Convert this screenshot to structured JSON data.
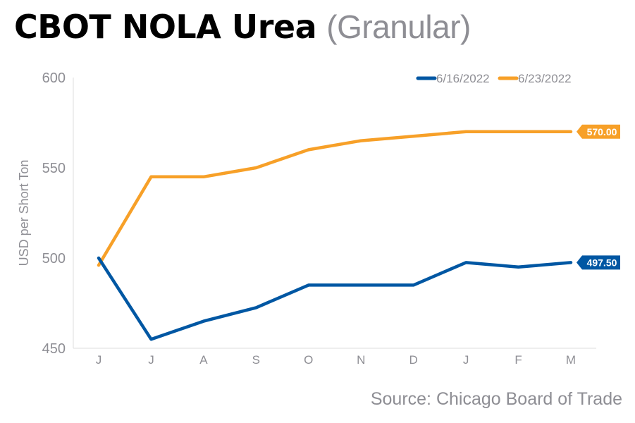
{
  "title": {
    "main": "CBOT NOLA Urea",
    "sub": "(Granular)"
  },
  "source": "Source: Chicago Board of Trade",
  "colors": {
    "series1": "#0057a3",
    "series2": "#f7a028",
    "axis": "#dddddd",
    "text": "#8e8e94"
  },
  "chart_data": {
    "type": "line",
    "title": "CBOT NOLA Urea (Granular)",
    "xlabel": "",
    "ylabel": "USD per Short Ton",
    "categories": [
      "J",
      "J",
      "A",
      "S",
      "O",
      "N",
      "D",
      "J",
      "F",
      "M"
    ],
    "yticks": [
      "450",
      "500",
      "550",
      "600"
    ],
    "ylim": [
      450,
      600
    ],
    "grid": false,
    "legend": "top-right",
    "series": [
      {
        "name": "6/16/2022",
        "color": "#0057a3",
        "values": [
          500,
          455,
          465,
          472.5,
          485,
          485,
          485,
          497.5,
          495,
          497.5
        ],
        "end_label": "497.50"
      },
      {
        "name": "6/23/2022",
        "color": "#f7a028",
        "values": [
          496,
          545,
          545,
          550,
          560,
          565,
          567.5,
          570,
          570,
          570
        ],
        "end_label": "570.00"
      }
    ]
  }
}
